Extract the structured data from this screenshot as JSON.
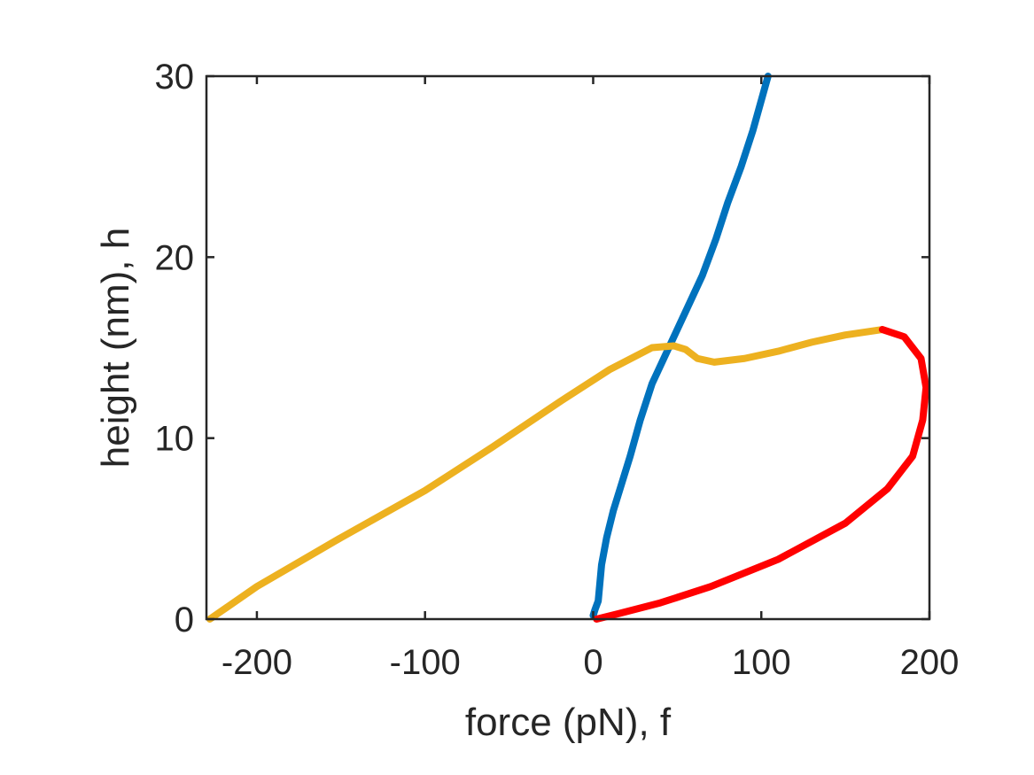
{
  "chart_data": {
    "type": "line",
    "title": "",
    "xlabel": "force (pN), f",
    "ylabel": "height (nm), h",
    "xlim": [
      -230,
      200
    ],
    "ylim": [
      0,
      30
    ],
    "xticks": [
      -200,
      -100,
      0,
      100,
      200
    ],
    "yticks": [
      0,
      10,
      20,
      30
    ],
    "xtick_labels": [
      "-200",
      "-100",
      "0",
      "100",
      "200"
    ],
    "ytick_labels": [
      "0",
      "10",
      "20",
      "30"
    ],
    "grid": false,
    "legend": "none",
    "series": [
      {
        "color": "#0072BD",
        "points": [
          [
            0,
            0.2
          ],
          [
            1,
            0.5
          ],
          [
            3,
            1.0
          ],
          [
            4,
            2.0
          ],
          [
            5,
            3.0
          ],
          [
            8,
            4.5
          ],
          [
            12,
            6.0
          ],
          [
            17,
            7.5
          ],
          [
            22,
            9.0
          ],
          [
            28,
            11.0
          ],
          [
            35,
            13.0
          ],
          [
            45,
            15.0
          ],
          [
            55,
            17.0
          ],
          [
            65,
            19.0
          ],
          [
            73,
            21.0
          ],
          [
            80,
            23.0
          ],
          [
            88,
            25.0
          ],
          [
            95,
            27.0
          ],
          [
            101,
            29.0
          ],
          [
            104,
            30.0
          ]
        ]
      },
      {
        "color": "#EDB120",
        "points": [
          [
            -228,
            0.0
          ],
          [
            -200,
            1.8
          ],
          [
            -150,
            4.5
          ],
          [
            -100,
            7.1
          ],
          [
            -60,
            9.5
          ],
          [
            -20,
            12.0
          ],
          [
            10,
            13.8
          ],
          [
            35,
            15.0
          ],
          [
            48,
            15.1
          ],
          [
            55,
            14.9
          ],
          [
            62,
            14.4
          ],
          [
            72,
            14.2
          ],
          [
            90,
            14.4
          ],
          [
            110,
            14.8
          ],
          [
            130,
            15.3
          ],
          [
            150,
            15.7
          ],
          [
            172,
            16.0
          ]
        ]
      },
      {
        "color": "#FF0000",
        "points": [
          [
            172,
            16.0
          ],
          [
            185,
            15.6
          ],
          [
            195,
            14.4
          ],
          [
            198,
            12.8
          ],
          [
            196,
            11.0
          ],
          [
            190,
            9.0
          ],
          [
            175,
            7.2
          ],
          [
            150,
            5.3
          ],
          [
            110,
            3.3
          ],
          [
            70,
            1.8
          ],
          [
            40,
            0.9
          ],
          [
            15,
            0.3
          ],
          [
            2,
            0.0
          ]
        ]
      }
    ]
  }
}
